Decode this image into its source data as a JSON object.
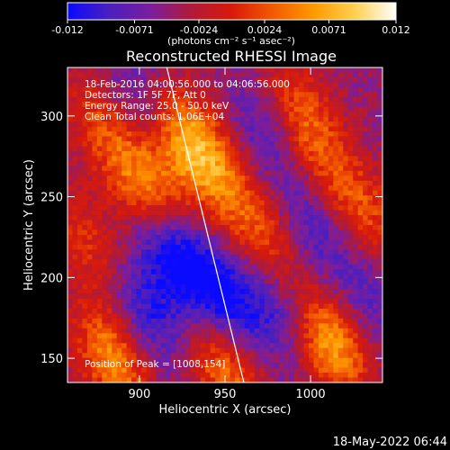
{
  "chart_data": {
    "type": "heatmap",
    "title": "Reconstructed RHESSI Image",
    "xlabel": "Heliocentric X (arcsec)",
    "ylabel": "Heliocentric Y (arcsec)",
    "xlim": [
      858,
      1042
    ],
    "ylim": [
      135,
      330
    ],
    "x_ticks": [
      900,
      950,
      1000
    ],
    "y_ticks": [
      150,
      200,
      250,
      300
    ],
    "colorbar": {
      "range": [
        -0.012,
        0.012
      ],
      "tick_values": [
        -0.012,
        -0.0071,
        -0.0024,
        0.0024,
        0.0071,
        0.012
      ],
      "tick_labels": [
        "-0.012",
        "-0.0071",
        "-0.0024",
        "0.0024",
        "0.0071",
        "0.012"
      ],
      "unit_label": "(photons cm⁻² s⁻¹ asec⁻²)",
      "colors": [
        "#0a0aff",
        "#4a1fbf",
        "#7a1e9e",
        "#b01a3a",
        "#d81a0a",
        "#f25a00",
        "#ff9a00",
        "#ffd050",
        "#ffffff"
      ]
    },
    "annotations": {
      "time_range": "18-Feb-2016 04:00:56.000 to 04:06:56.000",
      "detectors": "Detectors: 1F 5F 7F, Att 0",
      "energy": "Energy Range: 25.0 - 50.0 keV",
      "method": "Clean    Total counts: 1.06E+04",
      "peak": "Position of Peak = [1008,154]"
    },
    "limb_line": {
      "x": [
        916,
        961
      ],
      "y": [
        330,
        135
      ]
    },
    "peak_position": [
      1008,
      154
    ],
    "sources": [
      {
        "x": 930,
        "y": 285,
        "value": 0.011
      },
      {
        "x": 905,
        "y": 255,
        "value": 0.0095
      },
      {
        "x": 878,
        "y": 295,
        "value": 0.006
      },
      {
        "x": 950,
        "y": 255,
        "value": 0.005
      },
      {
        "x": 975,
        "y": 225,
        "value": 0.006
      },
      {
        "x": 1010,
        "y": 160,
        "value": 0.012
      },
      {
        "x": 1030,
        "y": 240,
        "value": 0.007
      },
      {
        "x": 885,
        "y": 150,
        "value": 0.01
      },
      {
        "x": 950,
        "y": 145,
        "value": 0.009
      },
      {
        "x": 1000,
        "y": 285,
        "value": 0.006
      },
      {
        "x": 990,
        "y": 310,
        "value": 0.004
      },
      {
        "x": 870,
        "y": 220,
        "value": 0.005
      },
      {
        "x": 920,
        "y": 215,
        "value": -0.009
      },
      {
        "x": 950,
        "y": 185,
        "value": -0.008
      },
      {
        "x": 905,
        "y": 175,
        "value": -0.006
      },
      {
        "x": 975,
        "y": 290,
        "value": -0.005
      },
      {
        "x": 1000,
        "y": 230,
        "value": -0.005
      },
      {
        "x": 985,
        "y": 175,
        "value": -0.0055
      },
      {
        "x": 900,
        "y": 310,
        "value": -0.004
      },
      {
        "x": 1035,
        "y": 190,
        "value": -0.004
      }
    ]
  },
  "footer": {
    "timestamp": "18-May-2022 06:44"
  }
}
